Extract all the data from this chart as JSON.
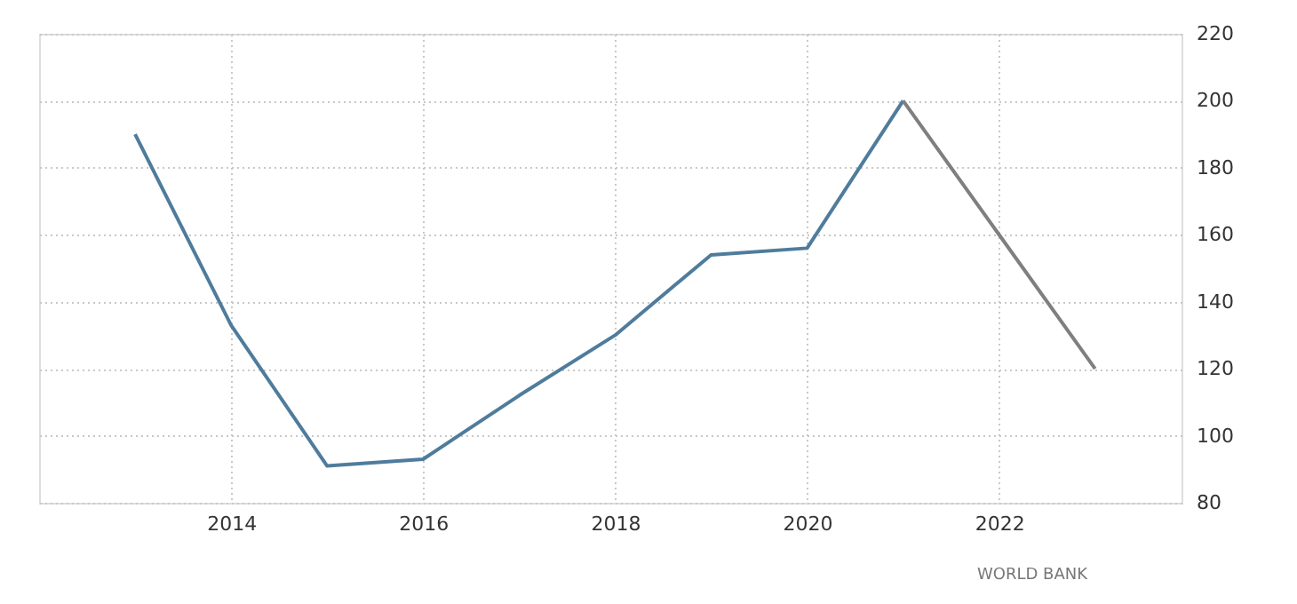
{
  "chart_data": {
    "type": "line",
    "series": [
      {
        "color": "#4f7c9c",
        "x": [
          2013,
          2014,
          2015,
          2016,
          2017,
          2018,
          2019,
          2020,
          2021
        ],
        "values": [
          190,
          133,
          91,
          93,
          112,
          130,
          154,
          156,
          200
        ]
      },
      {
        "color": "#7f7f7f",
        "x": [
          2021,
          2022,
          2023
        ],
        "values": [
          200,
          160,
          120
        ]
      }
    ],
    "xlim": [
      2012,
      2023.9
    ],
    "xticks": [
      2014,
      2016,
      2018,
      2020,
      2022
    ],
    "ylim": [
      80,
      220
    ],
    "yticks": [
      80,
      100,
      120,
      140,
      160,
      180,
      200,
      220
    ],
    "grid": true,
    "marker": "none",
    "line_style": "solid",
    "annotations": [
      "WORLD BANK"
    ]
  }
}
